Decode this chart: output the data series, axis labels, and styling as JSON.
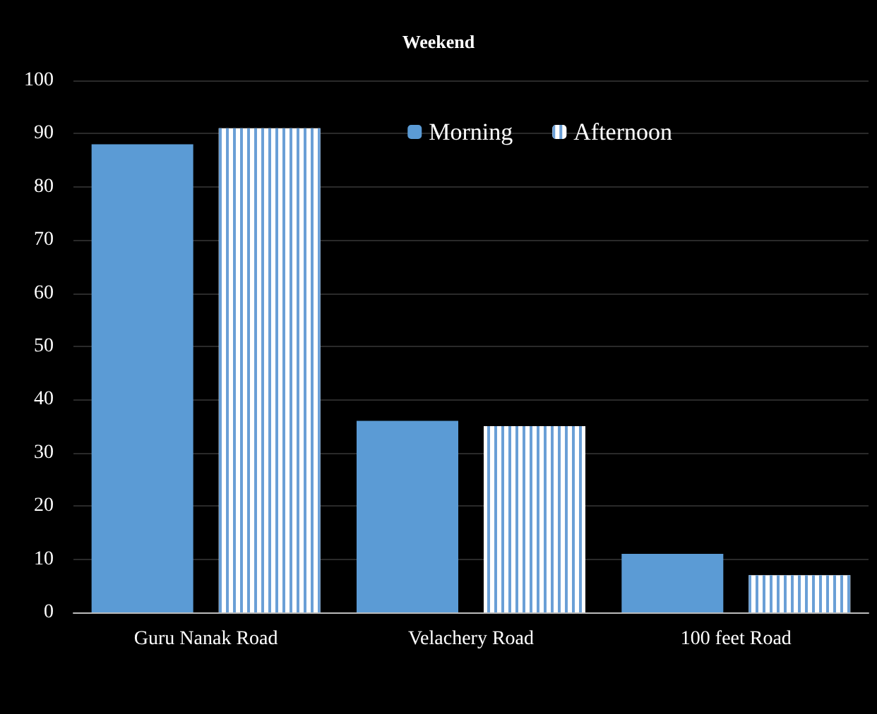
{
  "chart_data": {
    "type": "bar",
    "title": "Weekend",
    "categories": [
      "Guru Nanak Road",
      "Velachery Road",
      "100 feet Road"
    ],
    "series": [
      {
        "name": "Morning",
        "color": "#5b9bd5",
        "values": [
          88,
          36,
          11
        ]
      },
      {
        "name": "Afternoon",
        "color": "#6a9fd6",
        "values": [
          91,
          35,
          7
        ]
      }
    ],
    "ylim": [
      0,
      100
    ],
    "yticks": [
      0,
      10,
      20,
      30,
      40,
      50,
      60,
      70,
      80,
      90,
      100
    ],
    "grid": "y",
    "legend": "top right"
  }
}
